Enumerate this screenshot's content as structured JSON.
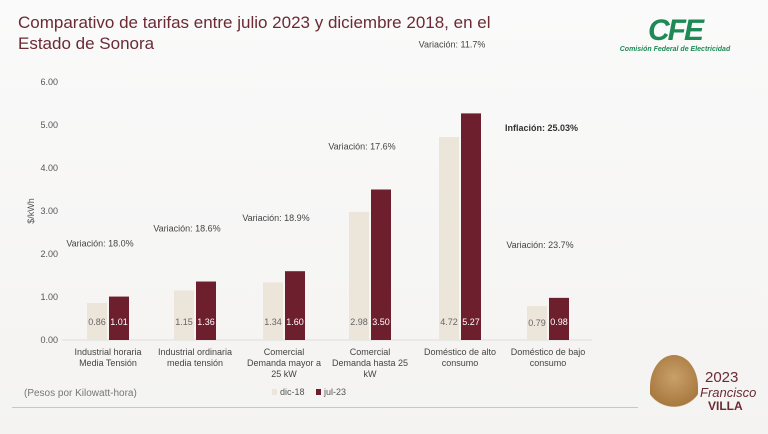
{
  "chart_data": {
    "type": "bar",
    "title": "Comparativo de tarifas entre julio 2023 y diciembre 2018, en el Estado de Sonora",
    "ylabel": "$/kWh",
    "ylim": [
      0,
      6
    ],
    "yticks": [
      "0.00",
      "1.00",
      "2.00",
      "3.00",
      "4.00",
      "5.00",
      "6.00"
    ],
    "categories": [
      [
        "Industrial horaria",
        "Media Tensión"
      ],
      [
        "Industrial ordinaria",
        "media tensión"
      ],
      [
        "Comercial",
        "Demanda mayor a",
        "25 kW"
      ],
      [
        "Comercial",
        "Demanda hasta  25",
        "kW"
      ],
      [
        "Doméstico de alto",
        "consumo"
      ],
      [
        "Doméstico de bajo",
        "consumo"
      ]
    ],
    "series": [
      {
        "name": "dic-18",
        "color": "#ece5da",
        "values": [
          0.86,
          1.15,
          1.34,
          2.98,
          4.72,
          0.79
        ],
        "labels": [
          "0.86",
          "1.15",
          "1.34",
          "2.98",
          "4.72",
          "0.79"
        ]
      },
      {
        "name": "jul-23",
        "color": "#6e1f2e",
        "values": [
          1.01,
          1.36,
          1.6,
          3.5,
          5.27,
          0.98
        ],
        "labels": [
          "1.01",
          "1.36",
          "1.60",
          "3.50",
          "5.27",
          "0.98"
        ]
      }
    ],
    "annotations": [
      "Variación: 18.0%",
      "Variación: 18.6%",
      "Variación: 18.9%",
      "Variación: 17.6%",
      "Variación: 11.7%",
      "Variación: 23.7%"
    ],
    "inflation": "Inflación: 25.03%",
    "legend": "bottom",
    "grid": false
  },
  "units_note": "(Pesos por Kilowatt-hora)",
  "logo": {
    "main": "CFE",
    "sub": "Comisión Federal de Electricidad"
  },
  "badge": {
    "year": "2023",
    "name1": "Francisco",
    "name2": "VILLA"
  }
}
